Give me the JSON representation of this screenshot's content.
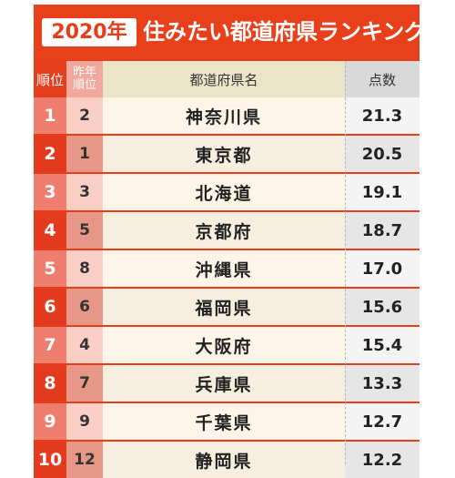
{
  "title": {
    "year": "2020年",
    "text": "住みたい都道府県ランキング"
  },
  "header": {
    "rank": "順位",
    "prev_line1": "昨年",
    "prev_line2": "順位",
    "name": "都道府県名",
    "score": "点数"
  },
  "rows": [
    {
      "rank": "1",
      "prev": "2",
      "name": "神奈川県",
      "score": "21.3"
    },
    {
      "rank": "2",
      "prev": "1",
      "name": "東京都",
      "score": "20.5"
    },
    {
      "rank": "3",
      "prev": "3",
      "name": "北海道",
      "score": "19.1"
    },
    {
      "rank": "4",
      "prev": "5",
      "name": "京都府",
      "score": "18.7"
    },
    {
      "rank": "5",
      "prev": "8",
      "name": "沖縄県",
      "score": "17.0"
    },
    {
      "rank": "6",
      "prev": "6",
      "name": "福岡県",
      "score": "15.6"
    },
    {
      "rank": "7",
      "prev": "4",
      "name": "大阪府",
      "score": "15.4"
    },
    {
      "rank": "8",
      "prev": "7",
      "name": "兵庫県",
      "score": "13.3"
    },
    {
      "rank": "9",
      "prev": "9",
      "name": "千葉県",
      "score": "12.7"
    },
    {
      "rank": "10",
      "prev": "12",
      "name": "静岡県",
      "score": "12.2"
    }
  ],
  "colors": {
    "accent": "#e63e1c",
    "rank_light": "#f07e6e",
    "name_bg": "#fdf6e8",
    "score_bg": "#efefef"
  }
}
